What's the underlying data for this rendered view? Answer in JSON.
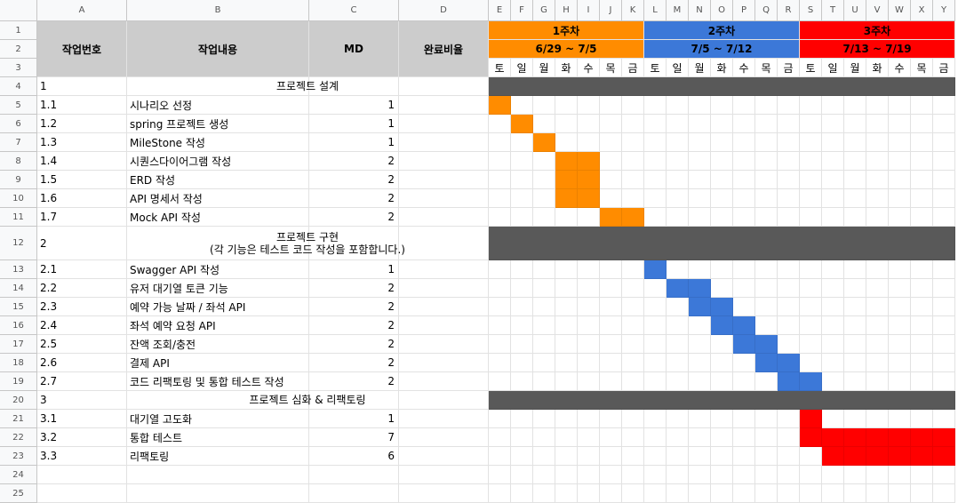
{
  "colors": {
    "week1": "#ff8c00",
    "week2": "#3c78d8",
    "week3": "#ff0000",
    "header_gray": "#cccccc",
    "phase_dark": "#595959"
  },
  "column_letters": [
    "A",
    "B",
    "C",
    "D",
    "E",
    "F",
    "G",
    "H",
    "I",
    "J",
    "K",
    "L",
    "M",
    "N",
    "O",
    "P",
    "Q",
    "R",
    "S",
    "T",
    "U",
    "V",
    "W",
    "X",
    "Y"
  ],
  "row_numbers": [
    "1",
    "2",
    "3",
    "4",
    "5",
    "6",
    "7",
    "8",
    "9",
    "10",
    "11",
    "12",
    "13",
    "14",
    "15",
    "16",
    "17",
    "18",
    "19",
    "20",
    "21",
    "22",
    "23",
    "24",
    "25"
  ],
  "headers": {
    "task_no": "작업번호",
    "task": "작업내용",
    "md": "MD",
    "progress": "완료비율"
  },
  "weeks": [
    {
      "label": "1주차",
      "range": "6/29 ~ 7/5"
    },
    {
      "label": "2주차",
      "range": "7/5 ~ 7/12"
    },
    {
      "label": "3주차",
      "range": "7/13 ~ 7/19"
    }
  ],
  "days": [
    "토",
    "일",
    "월",
    "화",
    "수",
    "목",
    "금",
    "토",
    "일",
    "월",
    "화",
    "수",
    "목",
    "금",
    "토",
    "일",
    "월",
    "화",
    "수",
    "목",
    "금"
  ],
  "rows": [
    {
      "no": "1",
      "task": "프로젝트 설계",
      "md": "",
      "phase": true
    },
    {
      "no": "1.1",
      "task": "시나리오 선정",
      "md": "1",
      "start": 0,
      "len": 1,
      "week": 1
    },
    {
      "no": "1.2",
      "task": "spring 프로젝트 생성",
      "md": "1",
      "start": 1,
      "len": 1,
      "week": 1
    },
    {
      "no": "1.3",
      "task": "MileStone 작성",
      "md": "1",
      "start": 2,
      "len": 1,
      "week": 1
    },
    {
      "no": "1.4",
      "task": "시퀀스다이어그램 작성",
      "md": "2",
      "start": 3,
      "len": 2,
      "week": 1
    },
    {
      "no": "1.5",
      "task": "ERD 작성",
      "md": "2",
      "start": 3,
      "len": 2,
      "week": 1
    },
    {
      "no": "1.6",
      "task": "API 명세서 작성",
      "md": "2",
      "start": 3,
      "len": 2,
      "week": 1
    },
    {
      "no": "1.7",
      "task": "Mock API 작성",
      "md": "2",
      "start": 5,
      "len": 2,
      "week": 1
    },
    {
      "no": "2",
      "task": "프로젝트 구현",
      "task_sub": "(각 기능은 테스트 코드 작성을 포함합니다.)",
      "md": "",
      "phase": true
    },
    {
      "no": "2.1",
      "task": "Swagger API 작성",
      "md": "1",
      "start": 7,
      "len": 1,
      "week": 2
    },
    {
      "no": "2.2",
      "task": "유저 대기열 토큰 기능",
      "md": "2",
      "start": 8,
      "len": 2,
      "week": 2
    },
    {
      "no": "2.3",
      "task": "예약 가능 날짜 / 좌석 API",
      "md": "2",
      "start": 9,
      "len": 2,
      "week": 2
    },
    {
      "no": "2.4",
      "task": "좌석 예약 요청 API",
      "md": "2",
      "start": 10,
      "len": 2,
      "week": 2
    },
    {
      "no": "2.5",
      "task": "잔액 조회/충전",
      "md": "2",
      "start": 11,
      "len": 2,
      "week": 2
    },
    {
      "no": "2.6",
      "task": "결제 API",
      "md": "2",
      "start": 12,
      "len": 2,
      "week": 2
    },
    {
      "no": "2.7",
      "task": "코드 리팩토링 및 통합 테스트 작성",
      "md": "2",
      "start": 13,
      "len": 2,
      "week": 2
    },
    {
      "no": "3",
      "task": "프로젝트 심화 & 리팩토링",
      "md": "",
      "phase": true
    },
    {
      "no": "3.1",
      "task": "대기열 고도화",
      "md": "1",
      "start": 14,
      "len": 1,
      "week": 3
    },
    {
      "no": "3.2",
      "task": "통합 테스트",
      "md": "7",
      "start": 14,
      "len": 7,
      "week": 3
    },
    {
      "no": "3.3",
      "task": "리팩토링",
      "md": "6",
      "start": 15,
      "len": 6,
      "week": 3
    }
  ]
}
